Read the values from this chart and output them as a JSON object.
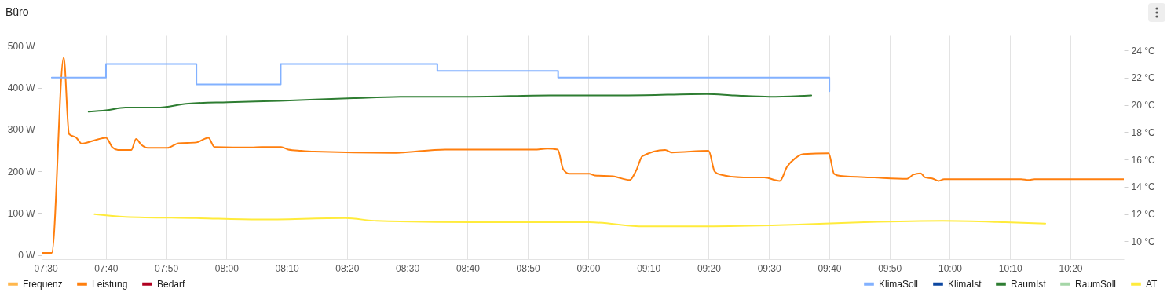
{
  "chart_data": {
    "type": "line",
    "title": "Büro",
    "xlim": [
      7.489,
      10.481
    ],
    "xticks": [
      {
        "value": 7.5,
        "label": "07:30"
      },
      {
        "value": 7.6667,
        "label": "07:40"
      },
      {
        "value": 7.8333,
        "label": "07:50"
      },
      {
        "value": 8,
        "label": "08:00"
      },
      {
        "value": 8.1667,
        "label": "08:10"
      },
      {
        "value": 8.3333,
        "label": "08:20"
      },
      {
        "value": 8.5,
        "label": "08:30"
      },
      {
        "value": 8.6667,
        "label": "08:40"
      },
      {
        "value": 8.8333,
        "label": "08:50"
      },
      {
        "value": 9,
        "label": "09:00"
      },
      {
        "value": 9.1667,
        "label": "09:10"
      },
      {
        "value": 9.3333,
        "label": "09:20"
      },
      {
        "value": 9.5,
        "label": "09:30"
      },
      {
        "value": 9.6667,
        "label": "09:40"
      },
      {
        "value": 9.8333,
        "label": "09:50"
      },
      {
        "value": 10,
        "label": "10:00"
      },
      {
        "value": 10.1667,
        "label": "10:10"
      },
      {
        "value": 10.3333,
        "label": "10:20"
      }
    ],
    "ylim": [
      -10,
      525
    ],
    "yticks": [
      {
        "value": 0,
        "label": "0 W"
      },
      {
        "value": 100,
        "label": "100 W"
      },
      {
        "value": 200,
        "label": "200 W"
      },
      {
        "value": 300,
        "label": "300 W"
      },
      {
        "value": 400,
        "label": "400 W"
      },
      {
        "value": 500,
        "label": "500 W"
      }
    ],
    "y2lim": [
      8.7,
      25.1
    ],
    "y2ticks": [
      {
        "value": 10,
        "label": "10 °C"
      },
      {
        "value": 12,
        "label": "12 °C"
      },
      {
        "value": 14,
        "label": "14 °C"
      },
      {
        "value": 16,
        "label": "16 °C"
      },
      {
        "value": 18,
        "label": "18 °C"
      },
      {
        "value": 20,
        "label": "20 °C"
      },
      {
        "value": 22,
        "label": "22 °C"
      },
      {
        "value": 24,
        "label": "24 °C"
      }
    ],
    "grid": "x",
    "legend": "bottom",
    "series": [
      {
        "name": "Frequenz",
        "color": "#ffb74d"
      },
      {
        "name": "Leistung",
        "color": "#ff7f0e",
        "x": [
          7.489,
          7.517,
          7.55,
          7.565,
          7.585,
          7.6,
          7.635,
          7.667,
          7.685,
          7.7,
          7.737,
          7.75,
          7.765,
          7.782,
          7.837,
          7.867,
          7.917,
          7.95,
          7.967,
          8.069,
          8.097,
          8.151,
          8.171,
          8.206,
          8.243,
          8.46,
          8.605,
          8.851,
          8.887,
          8.916,
          8.931,
          8.948,
          9.003,
          9.018,
          9.068,
          9.115,
          9.133,
          9.15,
          9.213,
          9.231,
          9.333,
          9.35,
          9.365,
          9.43,
          9.487,
          9.53,
          9.55,
          9.571,
          9.595,
          9.665,
          9.68,
          9.697,
          9.791,
          9.882,
          9.899,
          9.919,
          9.932,
          9.951,
          9.969,
          9.984,
          10.197,
          10.218,
          10.234,
          10.481
        ],
        "values": [
          5,
          5,
          472,
          289,
          280,
          266,
          274,
          280,
          257,
          251,
          251,
          277,
          263,
          256,
          256,
          267,
          269,
          280,
          258,
          257,
          258,
          258,
          252,
          249,
          247,
          244,
          252,
          252,
          254,
          252,
          205,
          194,
          194,
          190,
          188,
          179,
          202,
          236,
          251,
          245,
          249,
          199,
          192,
          185,
          185,
          177,
          211,
          230,
          241,
          243,
          194,
          189,
          185,
          182,
          192,
          195,
          185,
          183,
          177,
          181,
          181,
          179,
          181,
          181
        ]
      },
      {
        "name": "Bedarf",
        "color": "#b00020"
      },
      {
        "name": "KlimaSoll",
        "color": "#82b1ff",
        "type": "step",
        "axis": "y2",
        "x": [
          7.517,
          7.667,
          7.917,
          8.15,
          8.583,
          8.917,
          9.667
        ],
        "values": [
          22,
          23,
          21.5,
          23,
          22.5,
          22,
          21
        ]
      },
      {
        "name": "KlimaIst",
        "color": "#0d47a1",
        "axis": "y2"
      },
      {
        "name": "RaumIst",
        "color": "#2e7d32",
        "axis": "y2",
        "x": [
          7.619,
          7.667,
          7.721,
          7.808,
          7.895,
          8.004,
          8.147,
          8.351,
          8.503,
          8.677,
          8.894,
          9.111,
          9.328,
          9.404,
          9.502,
          9.617
        ],
        "values": [
          19.5,
          19.6,
          19.8,
          19.8,
          20.1,
          20.2,
          20.3,
          20.5,
          20.6,
          20.6,
          20.7,
          20.7,
          20.8,
          20.7,
          20.6,
          20.7
        ]
      },
      {
        "name": "RaumSoll",
        "color": "#a5d6a7",
        "axis": "y2"
      },
      {
        "name": "AT",
        "color": "#ffeb3b",
        "axis": "y2",
        "x": [
          7.635,
          7.721,
          7.917,
          8.091,
          8.329,
          8.416,
          8.677,
          9.003,
          9.155,
          9.328,
          9.545,
          9.763,
          9.98,
          10.153,
          10.264
        ],
        "values": [
          12,
          11.8,
          11.7,
          11.6,
          11.7,
          11.5,
          11.4,
          11.4,
          11.1,
          11.1,
          11.2,
          11.4,
          11.5,
          11.4,
          11.3
        ]
      }
    ]
  }
}
